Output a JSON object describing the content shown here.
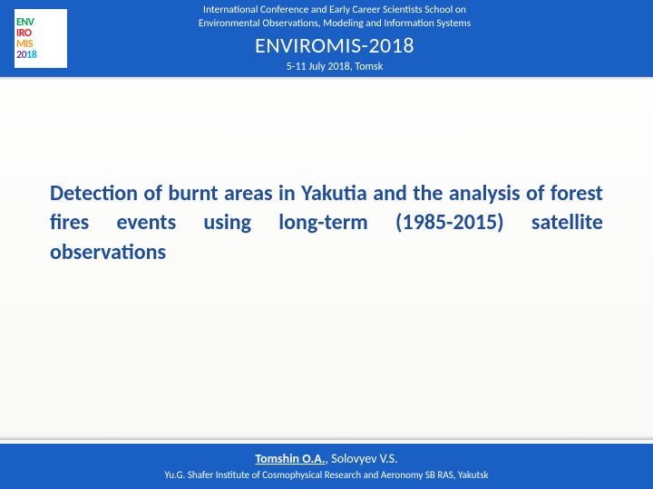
{
  "header": {
    "logo": {
      "line1": "ENV",
      "line2": "IRO",
      "line3": "MIS",
      "line4": "20",
      "line5": "18"
    },
    "subtitle_line1": "International Conference and Early Career Scientists School on",
    "subtitle_line2": "Environmental Observations, Modeling and Information Systems",
    "title": "ENVIROMIS-2018",
    "dates": "5-11 July 2018, Tomsk"
  },
  "main": {
    "title": "Detection of burnt areas in Yakutia and the analysis of forest fires events using long-term (1985-2015) satellite observations"
  },
  "footer": {
    "author_main": "Tomshin O.A.",
    "author_other": ", Solovyev V.S.",
    "affiliation": "Yu.G. Shafer Institute of Cosmophysical Research and Aeronomy SB RAS, Yakutsk"
  },
  "colors": {
    "header_bg": "#1a5fc4",
    "title_color": "#1e4d99",
    "body_bg": "#ffffff"
  }
}
